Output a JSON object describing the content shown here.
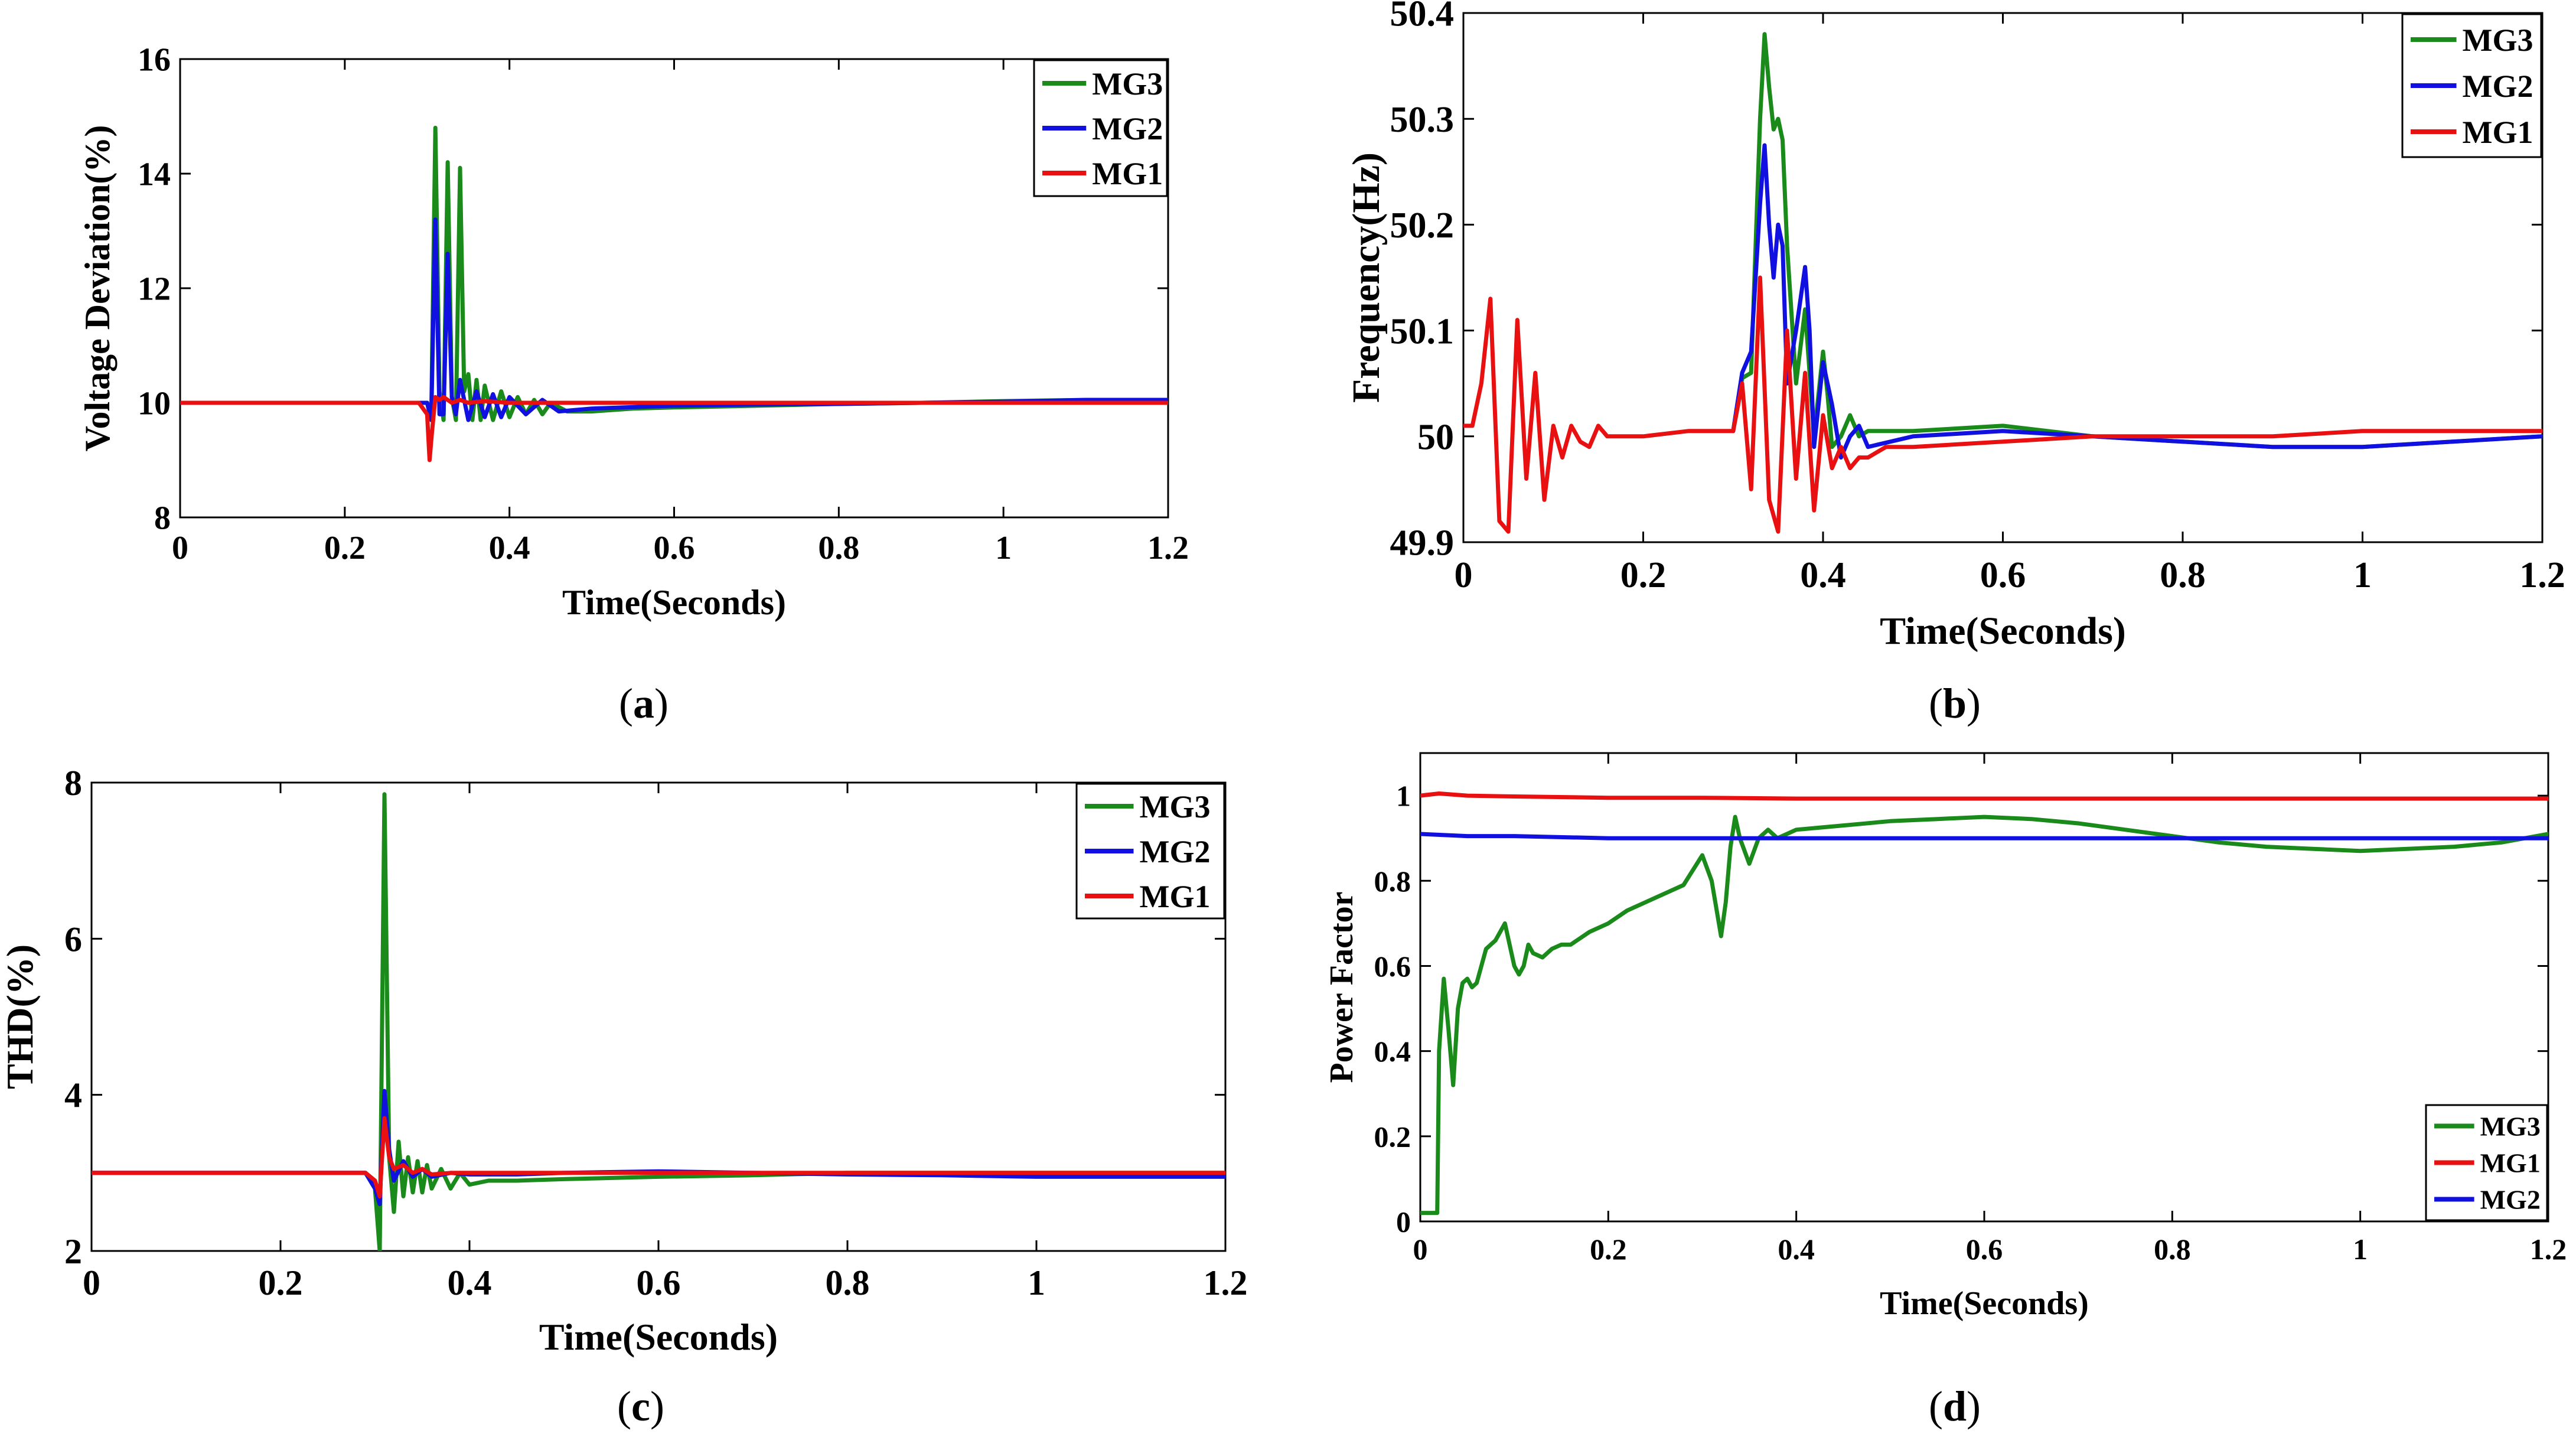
{
  "chart_data": [
    {
      "panel": "a",
      "caption_letter": "a",
      "type": "line",
      "xlabel": "Time(Seconds)",
      "ylabel": "Voltage Deviation(%)",
      "xlim": [
        0,
        1.2
      ],
      "ylim": [
        8,
        16
      ],
      "xticks": [
        0,
        0.2,
        0.4,
        0.6,
        0.8,
        1,
        1.2
      ],
      "xtick_labels": [
        "0",
        "0.2",
        "0.4",
        "0.6",
        "0.8",
        "1",
        "1.2"
      ],
      "yticks": [
        8,
        10,
        12,
        14,
        16
      ],
      "ytick_labels": [
        "8",
        "10",
        "12",
        "14",
        "16"
      ],
      "legend_position": "top-right",
      "legend": [
        "MG3",
        "MG2",
        "MG1"
      ],
      "series": [
        {
          "name": "MG3",
          "color": "#1a8a1a",
          "x": [
            0,
            0.3,
            0.305,
            0.31,
            0.315,
            0.32,
            0.325,
            0.33,
            0.335,
            0.34,
            0.345,
            0.35,
            0.355,
            0.36,
            0.365,
            0.37,
            0.38,
            0.39,
            0.4,
            0.41,
            0.42,
            0.43,
            0.44,
            0.45,
            0.47,
            0.5,
            0.55,
            0.6,
            0.7,
            0.8,
            0.9,
            1,
            1.1,
            1.2
          ],
          "y": [
            10,
            10,
            9.7,
            14.8,
            10.2,
            9.7,
            14.2,
            10.1,
            9.7,
            14.1,
            10.2,
            10.5,
            9.7,
            10.4,
            9.7,
            10.3,
            9.7,
            10.2,
            9.75,
            10.1,
            9.8,
            10.05,
            9.8,
            10.0,
            9.85,
            9.85,
            9.9,
            9.92,
            9.95,
            9.98,
            10.0,
            10.03,
            10.05,
            10.05
          ]
        },
        {
          "name": "MG2",
          "color": "#1010e0",
          "x": [
            0,
            0.3,
            0.305,
            0.31,
            0.315,
            0.32,
            0.325,
            0.33,
            0.335,
            0.34,
            0.35,
            0.36,
            0.37,
            0.38,
            0.39,
            0.4,
            0.42,
            0.44,
            0.46,
            0.5,
            0.6,
            0.7,
            0.8,
            0.9,
            1,
            1.1,
            1.2
          ],
          "y": [
            10,
            10,
            9.7,
            13.2,
            9.8,
            9.8,
            12.6,
            10.1,
            9.8,
            10.4,
            9.7,
            10.2,
            9.75,
            10.15,
            9.75,
            10.1,
            9.8,
            10.05,
            9.85,
            9.9,
            9.95,
            9.97,
            9.98,
            10.0,
            10.02,
            10.05,
            10.05
          ]
        },
        {
          "name": "MG1",
          "color": "#e81010",
          "x": [
            0,
            0.29,
            0.3,
            0.303,
            0.306,
            0.31,
            0.315,
            0.32,
            0.33,
            0.34,
            0.35,
            0.37,
            0.4,
            0.45,
            0.5,
            0.6,
            0.8,
            1,
            1.2
          ],
          "y": [
            10,
            10,
            9.8,
            9.0,
            9.5,
            10.1,
            10.05,
            10.1,
            10.0,
            10.05,
            10.0,
            10.03,
            10.0,
            10.0,
            10.0,
            10.0,
            10.0,
            10.0,
            10.0
          ]
        }
      ]
    },
    {
      "panel": "b",
      "caption_letter": "b",
      "type": "line",
      "xlabel": "Time(Seconds)",
      "ylabel": "Frequency(Hz)",
      "xlim": [
        0,
        1.2
      ],
      "ylim": [
        49.9,
        50.4
      ],
      "xticks": [
        0,
        0.2,
        0.4,
        0.6,
        0.8,
        1,
        1.2
      ],
      "xtick_labels": [
        "0",
        "0.2",
        "0.4",
        "0.6",
        "0.8",
        "1",
        "1.2"
      ],
      "yticks": [
        49.9,
        50,
        50.1,
        50.2,
        50.3,
        50.4
      ],
      "ytick_labels": [
        "49.9",
        "50",
        "50.1",
        "50.2",
        "50.3",
        "50.4"
      ],
      "legend_position": "top-right",
      "legend": [
        "MG3",
        "MG2",
        "MG1"
      ],
      "series": [
        {
          "name": "MG3",
          "color": "#1a8a1a",
          "x": [
            0.3,
            0.31,
            0.32,
            0.33,
            0.335,
            0.34,
            0.345,
            0.35,
            0.355,
            0.36,
            0.37,
            0.38,
            0.39,
            0.4,
            0.405,
            0.41,
            0.42,
            0.43,
            0.44,
            0.45,
            0.5,
            0.6,
            0.7,
            0.8,
            0.9,
            1,
            1.1,
            1.2
          ],
          "y": [
            50.005,
            50.055,
            50.06,
            50.3,
            50.38,
            50.33,
            50.29,
            50.3,
            50.28,
            50.18,
            50.05,
            50.12,
            50.0,
            50.08,
            50.04,
            49.99,
            50.0,
            50.02,
            50.0,
            50.005,
            50.005,
            50.01,
            50.0,
            49.995,
            49.99,
            49.99,
            49.995,
            50.0
          ]
        },
        {
          "name": "MG2",
          "color": "#1010e0",
          "x": [
            0.3,
            0.31,
            0.32,
            0.33,
            0.335,
            0.34,
            0.345,
            0.35,
            0.355,
            0.36,
            0.37,
            0.38,
            0.385,
            0.39,
            0.4,
            0.41,
            0.42,
            0.43,
            0.44,
            0.45,
            0.5,
            0.6,
            0.7,
            0.8,
            0.9,
            1,
            1.1,
            1.2
          ],
          "y": [
            50.005,
            50.06,
            50.08,
            50.22,
            50.275,
            50.2,
            50.15,
            50.2,
            50.18,
            50.05,
            50.1,
            50.16,
            50.1,
            49.99,
            50.07,
            50.03,
            49.98,
            50.0,
            50.01,
            49.99,
            50.0,
            50.005,
            50.0,
            49.995,
            49.99,
            49.99,
            49.995,
            50.0
          ]
        },
        {
          "name": "MG1",
          "color": "#e81010",
          "x": [
            0,
            0.01,
            0.02,
            0.03,
            0.04,
            0.05,
            0.06,
            0.07,
            0.08,
            0.09,
            0.1,
            0.11,
            0.12,
            0.13,
            0.14,
            0.15,
            0.16,
            0.18,
            0.2,
            0.25,
            0.3,
            0.31,
            0.32,
            0.33,
            0.34,
            0.35,
            0.36,
            0.37,
            0.38,
            0.39,
            0.4,
            0.41,
            0.42,
            0.43,
            0.44,
            0.45,
            0.47,
            0.5,
            0.6,
            0.7,
            0.8,
            0.9,
            1,
            1.1,
            1.2
          ],
          "y": [
            50.01,
            50.01,
            50.05,
            50.13,
            49.92,
            49.91,
            50.11,
            49.96,
            50.06,
            49.94,
            50.01,
            49.98,
            50.01,
            49.995,
            49.99,
            50.01,
            50.0,
            50.0,
            50.0,
            50.005,
            50.005,
            50.05,
            49.95,
            50.15,
            49.94,
            49.91,
            50.1,
            49.96,
            50.06,
            49.93,
            50.02,
            49.97,
            49.99,
            49.97,
            49.98,
            49.98,
            49.99,
            49.99,
            49.995,
            50.0,
            50.0,
            50.0,
            50.005,
            50.005,
            50.005
          ]
        }
      ]
    },
    {
      "panel": "c",
      "caption_letter": "c",
      "type": "line",
      "xlabel": "Time(Seconds)",
      "ylabel": "THD(%)",
      "xlim": [
        0,
        1.2
      ],
      "ylim": [
        2,
        8
      ],
      "xticks": [
        0,
        0.2,
        0.4,
        0.6,
        0.8,
        1,
        1.2
      ],
      "xtick_labels": [
        "0",
        "0.2",
        "0.4",
        "0.6",
        "0.8",
        "1",
        "1.2"
      ],
      "yticks": [
        2,
        4,
        6,
        8
      ],
      "ytick_labels": [
        "2",
        "4",
        "6",
        "8"
      ],
      "legend_position": "top-right",
      "legend": [
        "MG3",
        "MG2",
        "MG1"
      ],
      "series": [
        {
          "name": "MG3",
          "color": "#1a8a1a",
          "x": [
            0,
            0.29,
            0.3,
            0.305,
            0.31,
            0.315,
            0.32,
            0.325,
            0.33,
            0.335,
            0.34,
            0.345,
            0.35,
            0.355,
            0.36,
            0.37,
            0.38,
            0.39,
            0.4,
            0.42,
            0.45,
            0.5,
            0.6,
            0.7,
            0.8,
            0.9,
            1,
            1.1,
            1.2
          ],
          "y": [
            3.0,
            3.0,
            2.8,
            2.0,
            7.85,
            3.2,
            2.5,
            3.4,
            2.7,
            3.2,
            2.75,
            3.15,
            2.75,
            3.1,
            2.8,
            3.05,
            2.8,
            3.0,
            2.85,
            2.9,
            2.9,
            2.92,
            2.95,
            2.97,
            3.0,
            3.0,
            3.0,
            3.0,
            3.0
          ]
        },
        {
          "name": "MG2",
          "color": "#1010e0",
          "x": [
            0,
            0.29,
            0.3,
            0.305,
            0.31,
            0.315,
            0.32,
            0.33,
            0.34,
            0.35,
            0.36,
            0.38,
            0.4,
            0.45,
            0.5,
            0.6,
            0.7,
            0.8,
            0.9,
            1,
            1.1,
            1.2
          ],
          "y": [
            3.0,
            3.0,
            2.8,
            2.6,
            4.05,
            3.3,
            2.9,
            3.15,
            2.95,
            3.05,
            2.95,
            3.0,
            2.98,
            2.98,
            3.0,
            3.02,
            3.0,
            2.98,
            2.97,
            2.95,
            2.95,
            2.95
          ]
        },
        {
          "name": "MG1",
          "color": "#e81010",
          "x": [
            0,
            0.29,
            0.3,
            0.305,
            0.31,
            0.315,
            0.32,
            0.33,
            0.34,
            0.35,
            0.36,
            0.38,
            0.4,
            0.45,
            0.5,
            0.6,
            0.7,
            0.8,
            0.9,
            1,
            1.1,
            1.2
          ],
          "y": [
            3.0,
            3.0,
            2.9,
            2.7,
            3.7,
            3.2,
            3.05,
            3.1,
            3.0,
            3.05,
            2.98,
            3.0,
            3.0,
            3.0,
            3.0,
            3.0,
            3.0,
            3.0,
            3.0,
            3.0,
            3.0,
            3.0
          ]
        }
      ]
    },
    {
      "panel": "d",
      "caption_letter": "d",
      "type": "line",
      "xlabel": "Time(Seconds)",
      "ylabel": "Power Factor",
      "xlim": [
        0,
        1.2
      ],
      "ylim": [
        0,
        1.1
      ],
      "xticks": [
        0,
        0.2,
        0.4,
        0.6,
        0.8,
        1,
        1.2
      ],
      "xtick_labels": [
        "0",
        "0.2",
        "0.4",
        "0.6",
        "0.8",
        "1",
        "1.2"
      ],
      "yticks": [
        0,
        0.2,
        0.4,
        0.6,
        0.8,
        1
      ],
      "ytick_labels": [
        "0",
        "0.2",
        "0.4",
        "0.6",
        "0.8",
        "1"
      ],
      "legend_position": "bottom-right",
      "legend": [
        "MG3",
        "MG1",
        "MG2"
      ],
      "series": [
        {
          "name": "MG3",
          "color": "#1a8a1a",
          "x": [
            0,
            0.018,
            0.02,
            0.025,
            0.03,
            0.035,
            0.04,
            0.045,
            0.05,
            0.055,
            0.06,
            0.07,
            0.08,
            0.09,
            0.1,
            0.105,
            0.11,
            0.115,
            0.12,
            0.13,
            0.14,
            0.15,
            0.16,
            0.18,
            0.2,
            0.22,
            0.24,
            0.26,
            0.28,
            0.3,
            0.31,
            0.32,
            0.325,
            0.33,
            0.335,
            0.34,
            0.35,
            0.36,
            0.37,
            0.38,
            0.4,
            0.45,
            0.5,
            0.55,
            0.6,
            0.65,
            0.7,
            0.75,
            0.8,
            0.85,
            0.9,
            0.95,
            1,
            1.05,
            1.1,
            1.15,
            1.2
          ],
          "y": [
            0.02,
            0.02,
            0.4,
            0.57,
            0.45,
            0.32,
            0.5,
            0.56,
            0.57,
            0.55,
            0.56,
            0.64,
            0.66,
            0.7,
            0.6,
            0.58,
            0.6,
            0.65,
            0.63,
            0.62,
            0.64,
            0.65,
            0.65,
            0.68,
            0.7,
            0.73,
            0.75,
            0.77,
            0.79,
            0.86,
            0.8,
            0.67,
            0.75,
            0.88,
            0.95,
            0.9,
            0.84,
            0.9,
            0.92,
            0.9,
            0.92,
            0.93,
            0.94,
            0.945,
            0.95,
            0.945,
            0.935,
            0.92,
            0.905,
            0.89,
            0.88,
            0.875,
            0.87,
            0.875,
            0.88,
            0.89,
            0.91
          ]
        },
        {
          "name": "MG1",
          "color": "#e81010",
          "x": [
            0,
            0.02,
            0.05,
            0.1,
            0.2,
            0.3,
            0.4,
            0.6,
            0.8,
            1,
            1.2
          ],
          "y": [
            1.0,
            1.005,
            1.0,
            0.998,
            0.995,
            0.995,
            0.993,
            0.993,
            0.993,
            0.993,
            0.993
          ]
        },
        {
          "name": "MG2",
          "color": "#1010e0",
          "x": [
            0,
            0.05,
            0.1,
            0.2,
            0.4,
            0.6,
            0.8,
            1,
            1.2
          ],
          "y": [
            0.91,
            0.905,
            0.905,
            0.9,
            0.9,
            0.9,
            0.9,
            0.9,
            0.9
          ]
        }
      ]
    }
  ]
}
